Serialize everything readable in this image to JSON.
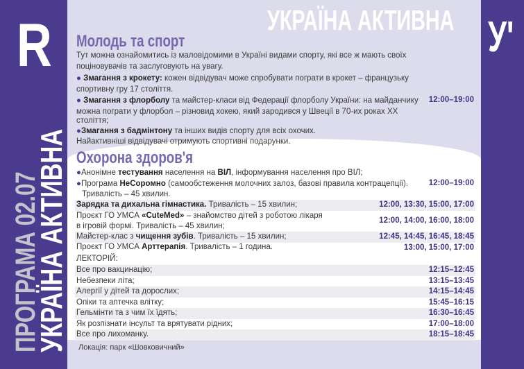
{
  "brand": {
    "logo_left": "R",
    "logo_right": "У'",
    "title": "УКРАЇНА АКТИВНА",
    "side_program": "ПРОГРАМА 02.07",
    "side_title": "УКРАЇНА АКТИВНА"
  },
  "colors": {
    "purple": "#4a3b8e",
    "heading": "#7468b0",
    "background": "#dcdcec"
  },
  "sport": {
    "heading": "Молодь та спорт",
    "intro1": "Тут можна ознайомитись із маловідомими в Україні видами спорту, які все ж мають своїх",
    "intro2": "поціновувачів та заслуговують на увагу.",
    "croquet_b": "Змагання з крокету:",
    "croquet": " кожен відвідувач може спробувати пограти в крокет – французьку",
    "croquet2": "спортивну гру 17 століття.",
    "floorball_b": "Змагання з флорболу",
    "floorball": " та майстер-класи від Федерації флорболу України: на майданчику",
    "floorball2": "можна пограти у флорбол – різновид хокею, який зародився у Швеції в 70-их роках XX",
    "floorball3": "століття;",
    "badminton_b": "Змагання з бадмінтону",
    "badminton": " та інших видів спорту для всіх охочих.",
    "prizes": "Найактивніші відвідувачі отримують спортивні подарунки.",
    "time": "12:00–19:00"
  },
  "health": {
    "heading": "Охорона здоров'я",
    "l1a": "Анонімне ",
    "l1b": "тестування",
    "l1c": " населення на ",
    "l1d": "ВІЛ",
    "l1e": ", інформування населення про ВІЛ;",
    "l2a": "Програма ",
    "l2b": "НеСоромно",
    "l2c": " (самообстеження молочних залоз, базові правила контрацепції).",
    "l2d": "Тривалість – 45 хвилин.",
    "time": "12:00–19:00",
    "r1b": "Зарядка та дихальна гімнастика.",
    "r1": " Тривалість – 15 хвилин;",
    "r1t": "12:00, 13:30, 15:00, 17:00",
    "r2a": "Проєкт ГО УМСА ",
    "r2b": "«CuteMed»",
    "r2c": " – знайомство дітей з роботою лікаря",
    "r2d": "в ігровій формі. Тривалість – 45 хвилин;",
    "r2t": "12:00, 14:00, 16:00, 18:00",
    "r3a": "Майстер-клас з ",
    "r3b": "чищення зубів",
    "r3c": ". Тривалість – 15 хвилин;",
    "r3t": "12:45, 14:45, 16:45, 18:45",
    "r4a": "Проєкт ГО УМСА ",
    "r4b": "Арттерапія",
    "r4c": ". Тривалість – 1 година.",
    "r4t": "13:00, 15:00, 17:00"
  },
  "lectures": {
    "heading": "ЛЕКТОРІЙ:",
    "items": [
      {
        "title": "Все про вакцинацію;",
        "time": "12:15–12:45"
      },
      {
        "title": "Небезпеки літа;",
        "time": "13:15–13:45"
      },
      {
        "title": "Алергії у дітей та дорослих;",
        "time": "14:15–14:45"
      },
      {
        "title": "Опіки та аптечка влітку;",
        "time": "15:45–16:15"
      },
      {
        "title": "Гельмінти та з чим їх їдять;",
        "time": "16:30–16:45"
      },
      {
        "title": "Як розпізнати інсульт та врятувати рідних;",
        "time": "17:00–18:00"
      },
      {
        "title": "Все про лихоманку.",
        "time": "18:15–18:45"
      }
    ]
  },
  "location": "Локація: парк «Шовковичний»"
}
